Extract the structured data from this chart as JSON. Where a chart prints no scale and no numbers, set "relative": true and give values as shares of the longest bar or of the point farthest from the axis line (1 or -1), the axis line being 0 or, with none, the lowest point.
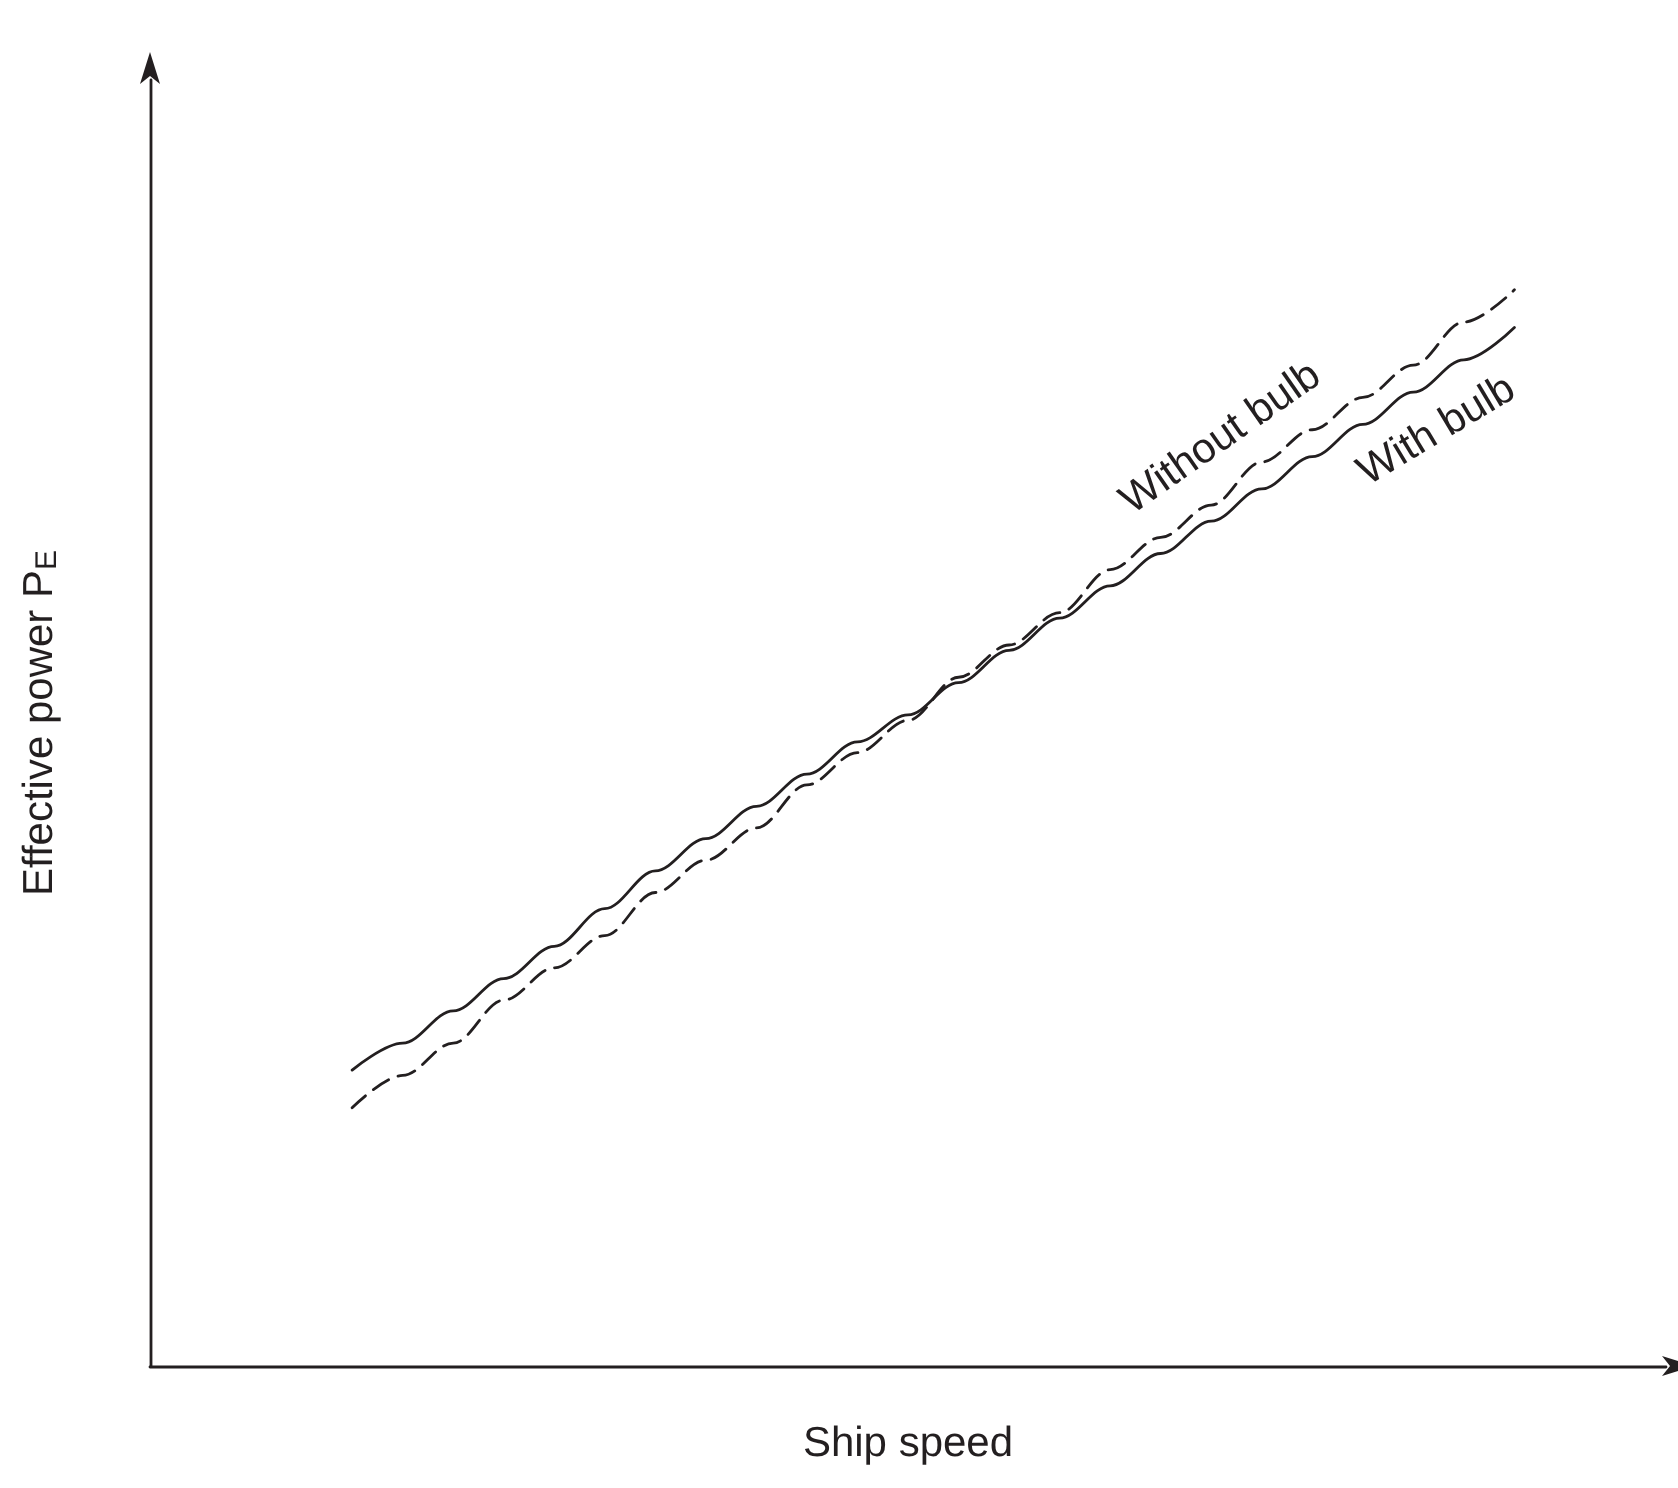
{
  "chart_data": {
    "type": "line",
    "relative": true,
    "xlabel": "Ship speed",
    "ylabel": "Effective power P$_{E}$",
    "legend": false,
    "grid": false,
    "marker": "none",
    "categories": [
      null,
      null,
      null,
      null,
      null,
      null,
      null,
      null,
      null,
      null,
      null,
      null,
      null,
      null,
      null,
      null,
      null,
      null,
      null,
      null,
      null,
      null,
      null,
      null,
      null,
      null,
      null,
      null,
      null,
      null,
      null
    ],
    "series": [
      {
        "name": "Without bulb",
        "color": "#231f20",
        "line_style": "dashed",
        "values": [
          null,
          null,
          null,
          null,
          0.24,
          0.27,
          0.3,
          0.34,
          0.37,
          0.4,
          0.44,
          0.47,
          0.5,
          0.54,
          0.57,
          0.6,
          0.64,
          0.67,
          0.7,
          0.74,
          0.77,
          0.8,
          0.84,
          0.87,
          0.9,
          0.93,
          0.97,
          1.0,
          null,
          null,
          null
        ]
      },
      {
        "name": "With bulb",
        "color": "#231f20",
        "line_style": "solid",
        "values": [
          null,
          null,
          null,
          null,
          0.275,
          0.3,
          0.33,
          0.36,
          0.39,
          0.425,
          0.46,
          0.49,
          0.52,
          0.55,
          0.58,
          0.605,
          0.635,
          0.665,
          0.695,
          0.725,
          0.755,
          0.785,
          0.815,
          0.845,
          0.875,
          0.905,
          0.935,
          0.965,
          null,
          null,
          null
        ]
      }
    ]
  }
}
